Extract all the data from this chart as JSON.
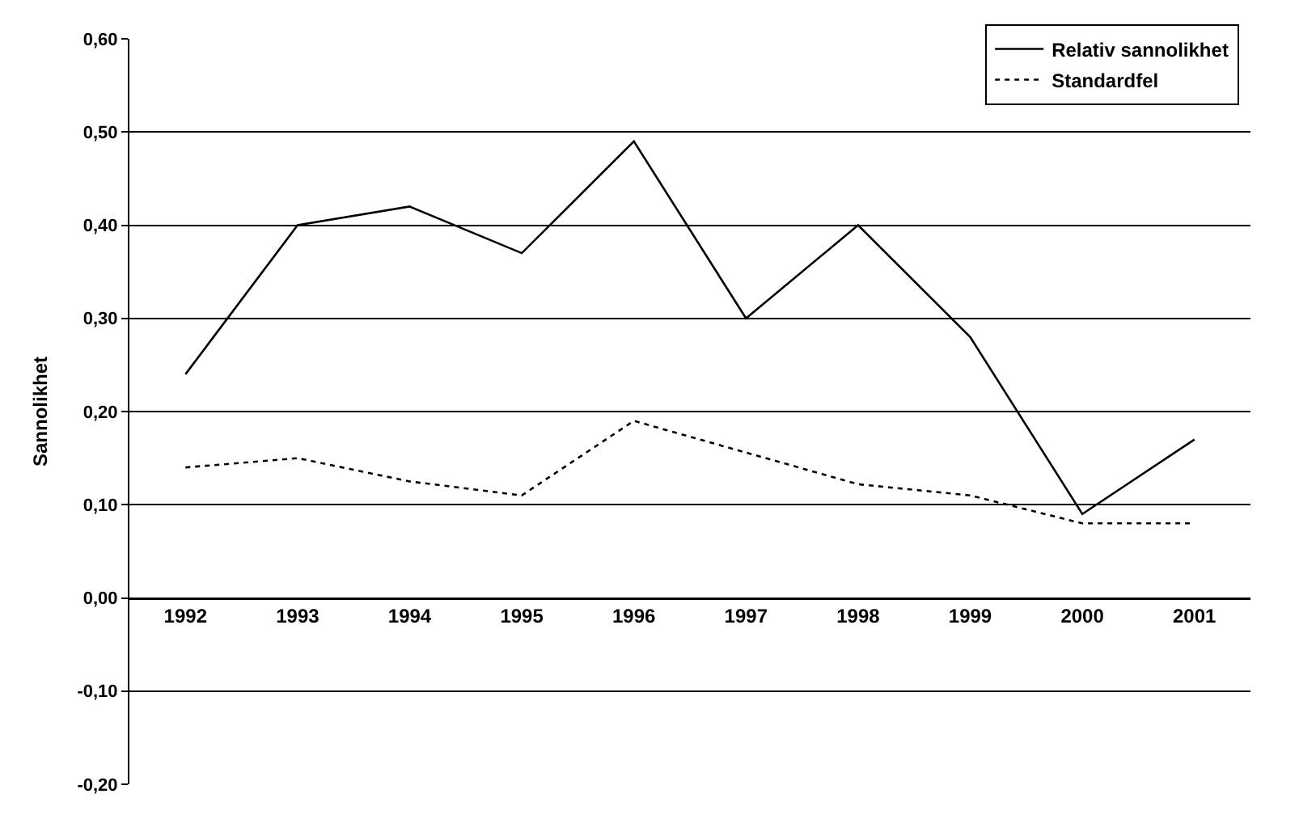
{
  "chart_data": {
    "type": "line",
    "ylabel": "Sannolikhet",
    "categories": [
      "1992",
      "1993",
      "1994",
      "1995",
      "1996",
      "1997",
      "1998",
      "1999",
      "2000",
      "2001"
    ],
    "series": [
      {
        "name": "Relativ sannolikhet",
        "color": "#000000",
        "line_style": "solid",
        "values": [
          0.24,
          0.4,
          0.42,
          0.37,
          0.49,
          0.3,
          0.4,
          0.28,
          0.09,
          0.17
        ]
      },
      {
        "name": "Standardfel",
        "color": "#000000",
        "line_style": "dotted",
        "values": [
          0.14,
          0.15,
          0.125,
          0.11,
          0.19,
          0.156,
          0.122,
          0.11,
          0.08,
          0.08
        ]
      }
    ],
    "ylim": [
      -0.2,
      0.6
    ],
    "yticks": [
      {
        "value": -0.2,
        "label": "-0,20"
      },
      {
        "value": -0.1,
        "label": "-0,10"
      },
      {
        "value": 0,
        "label": "0,00"
      },
      {
        "value": 0.1,
        "label": "0,10"
      },
      {
        "value": 0.2,
        "label": "0,20"
      },
      {
        "value": 0.3,
        "label": "0,30"
      },
      {
        "value": 0.4,
        "label": "0,40"
      },
      {
        "value": 0.5,
        "label": "0,50"
      },
      {
        "value": 0.6,
        "label": "0,60"
      }
    ],
    "grid": "y",
    "legend": "top right",
    "marker": "none"
  }
}
